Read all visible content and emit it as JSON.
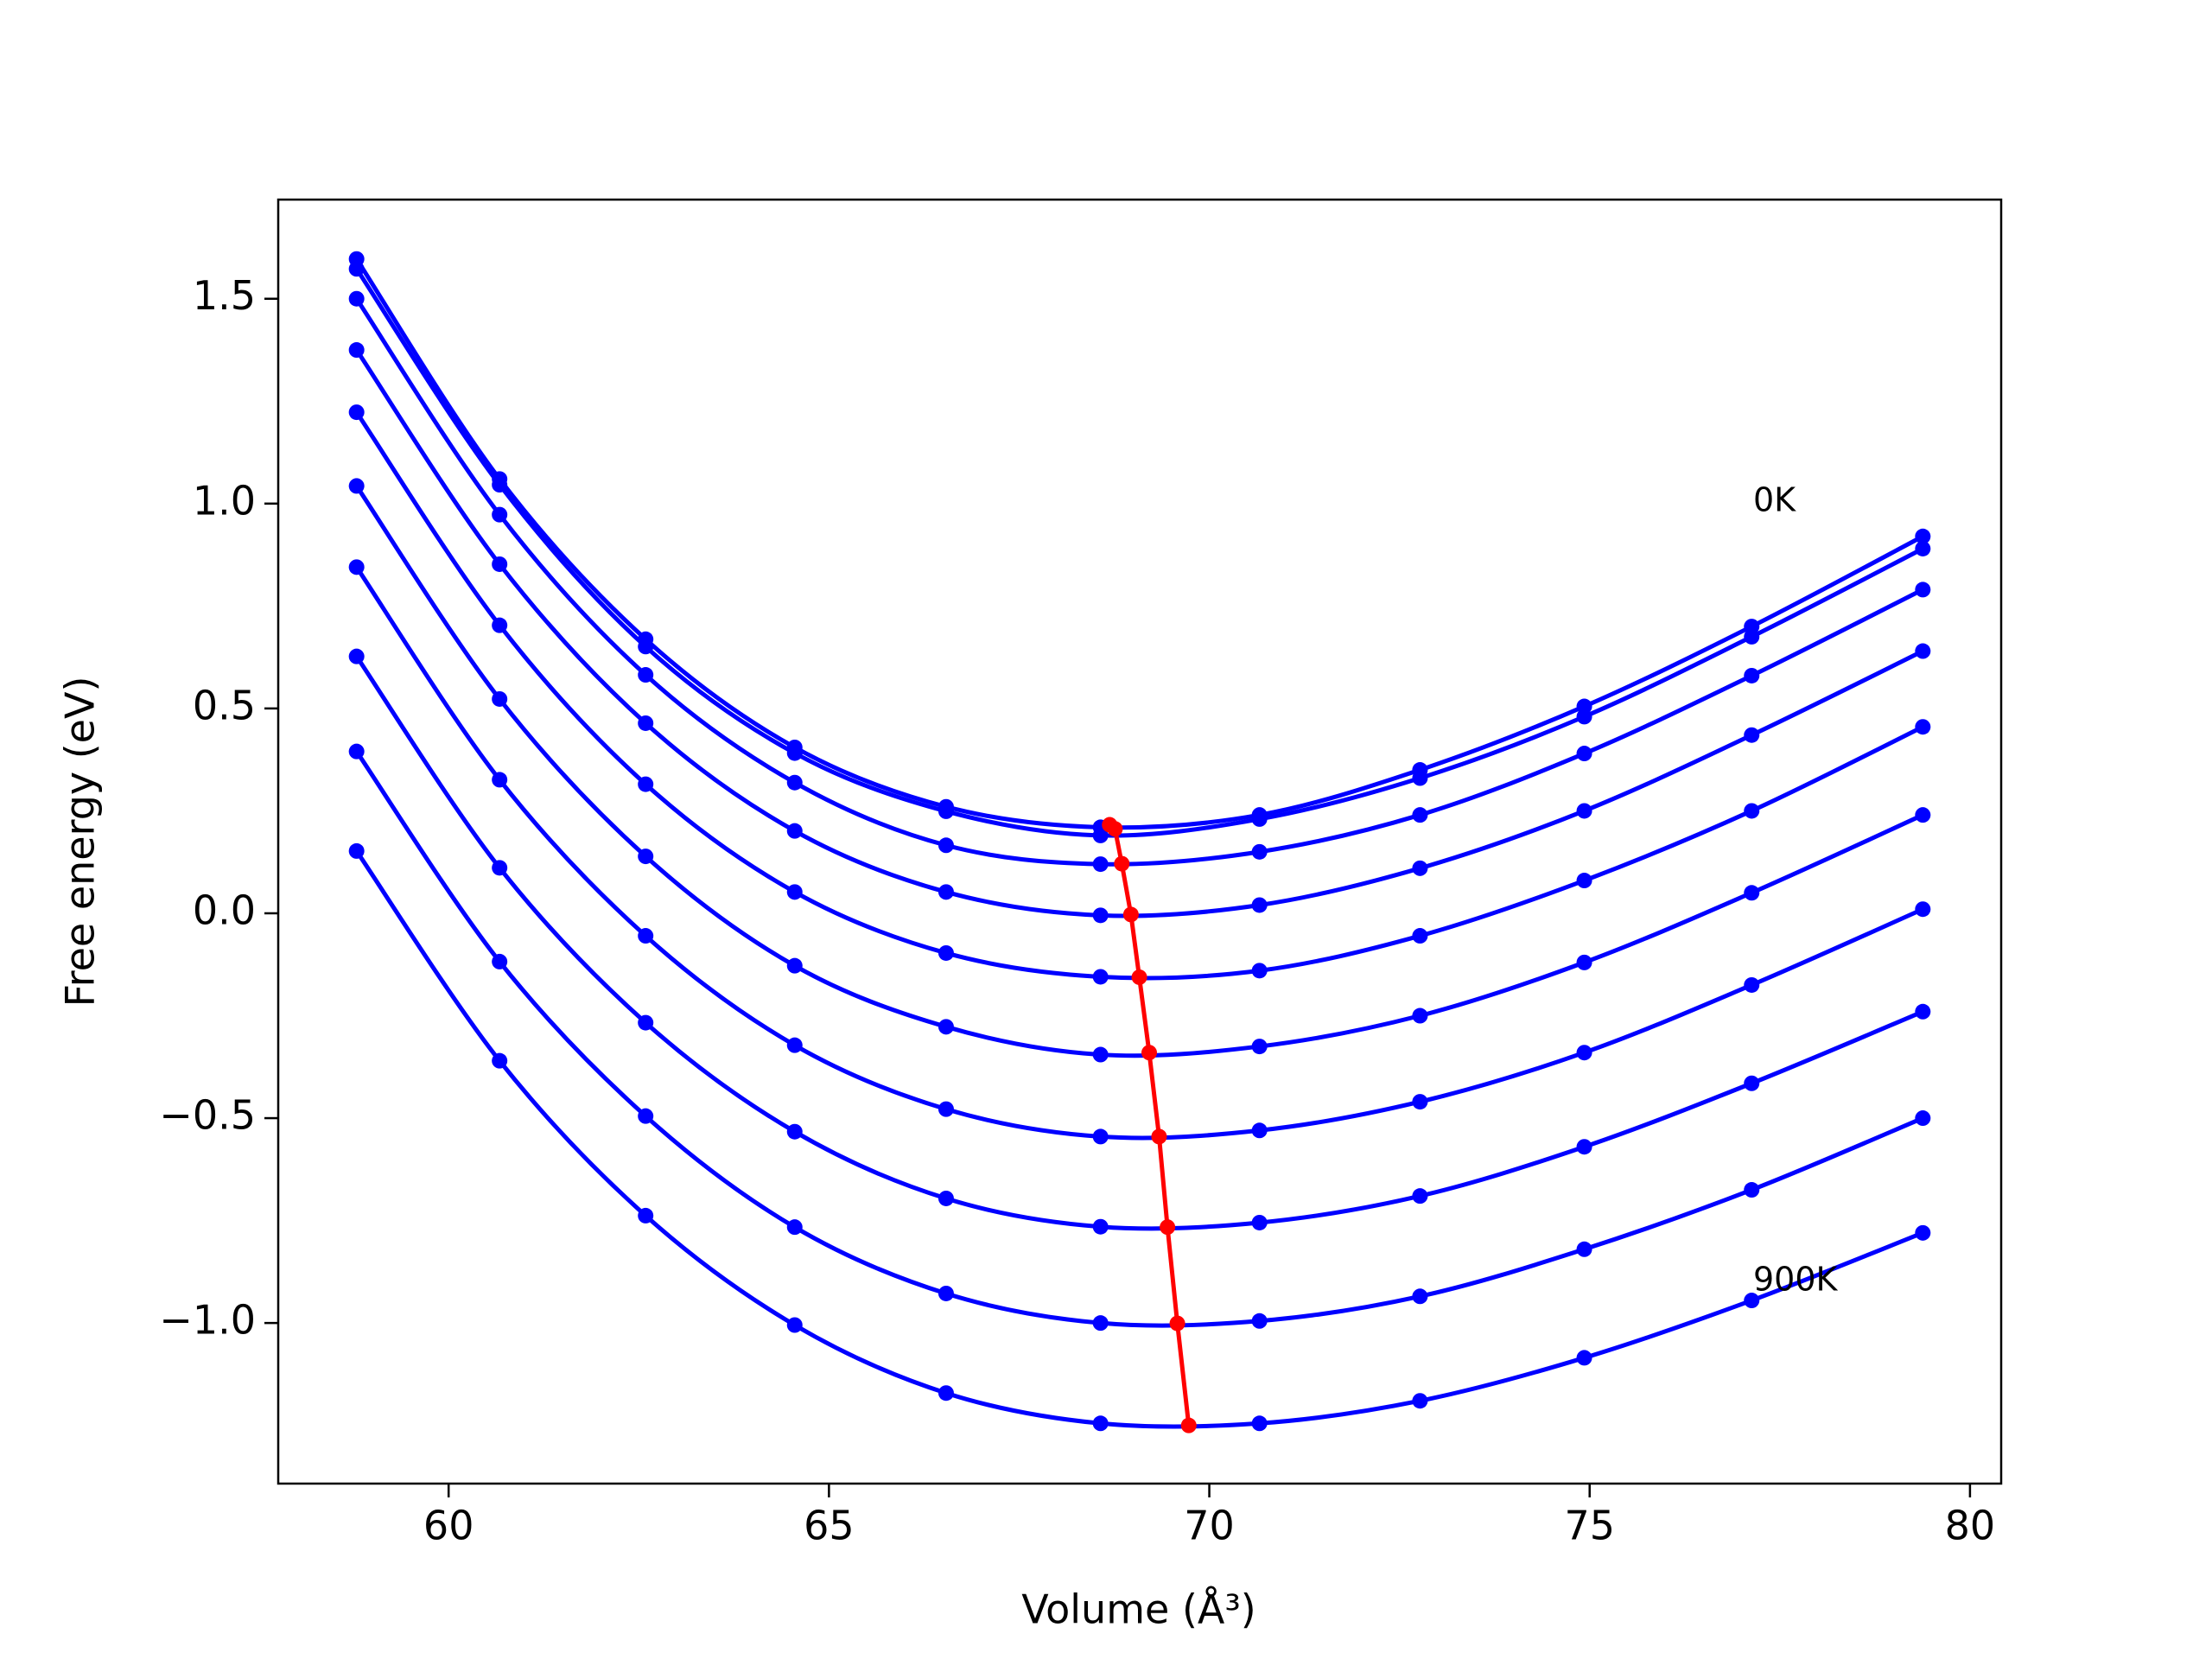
{
  "chart_data": {
    "type": "line",
    "xlabel": "Volume (Å³)",
    "ylabel": "Free energy (eV)",
    "annotations": [
      "0K",
      "900K"
    ],
    "x": [
      58.79,
      60.67,
      62.59,
      64.55,
      66.54,
      68.57,
      70.66,
      72.77,
      74.93,
      77.13,
      79.38
    ],
    "series": [
      {
        "color": "#0000ff",
        "values": [
          1.597,
          1.06,
          0.669,
          0.405,
          0.26,
          0.21,
          0.24,
          0.35,
          0.505,
          0.7,
          0.92
        ]
      },
      {
        "color": "#0000ff",
        "values": [
          1.573,
          1.046,
          0.651,
          0.391,
          0.249,
          0.19,
          0.23,
          0.33,
          0.48,
          0.675,
          0.89
        ]
      },
      {
        "color": "#0000ff",
        "values": [
          1.5,
          0.973,
          0.582,
          0.319,
          0.166,
          0.12,
          0.15,
          0.24,
          0.39,
          0.58,
          0.79
        ]
      },
      {
        "color": "#0000ff",
        "values": [
          1.375,
          0.852,
          0.464,
          0.201,
          0.052,
          -0.005,
          0.02,
          0.11,
          0.25,
          0.435,
          0.64
        ]
      },
      {
        "color": "#0000ff",
        "values": [
          1.223,
          0.703,
          0.315,
          0.052,
          -0.097,
          -0.155,
          -0.14,
          -0.055,
          0.08,
          0.25,
          0.455
        ]
      },
      {
        "color": "#0000ff",
        "values": [
          1.043,
          0.523,
          0.139,
          -0.128,
          -0.277,
          -0.345,
          -0.325,
          -0.25,
          -0.12,
          0.05,
          0.24
        ]
      },
      {
        "color": "#0000ff",
        "values": [
          0.845,
          0.326,
          -0.055,
          -0.322,
          -0.478,
          -0.545,
          -0.53,
          -0.46,
          -0.34,
          -0.175,
          0.01
        ]
      },
      {
        "color": "#0000ff",
        "values": [
          0.627,
          0.111,
          -0.267,
          -0.533,
          -0.696,
          -0.765,
          -0.755,
          -0.69,
          -0.57,
          -0.415,
          -0.24
        ]
      },
      {
        "color": "#0000ff",
        "values": [
          0.395,
          -0.118,
          -0.495,
          -0.766,
          -0.928,
          -1.0,
          -0.995,
          -0.935,
          -0.82,
          -0.675,
          -0.5
        ]
      },
      {
        "color": "#0000ff",
        "values": [
          0.152,
          -0.36,
          -0.738,
          -1.005,
          -1.171,
          -1.245,
          -1.245,
          -1.19,
          -1.085,
          -0.945,
          -0.78
        ]
      },
      {
        "color": "#ff0000",
        "smooth": false,
        "x": [
          68.69,
          68.76,
          68.85,
          68.97,
          69.08,
          69.21,
          69.34,
          69.45,
          69.58,
          69.73
        ],
        "values": [
          0.216,
          0.206,
          0.121,
          -0.003,
          -0.156,
          -0.34,
          -0.545,
          -0.766,
          -1.001,
          -1.25
        ]
      }
    ],
    "xlim": [
      57.76,
      80.41
    ],
    "ylim": [
      -1.392,
      1.742
    ],
    "xticks": [
      60,
      65,
      70,
      75,
      80
    ],
    "yticks": [
      {
        "value": -1.0,
        "label": "−1.0"
      },
      {
        "value": -0.5,
        "label": "−0.5"
      },
      {
        "value": 0.0,
        "label": "0.0"
      },
      0.5,
      {
        "value": 1.0,
        "label": "1.0"
      },
      {
        "value": 1.5,
        "label": "1.5"
      }
    ],
    "grid": false
  }
}
